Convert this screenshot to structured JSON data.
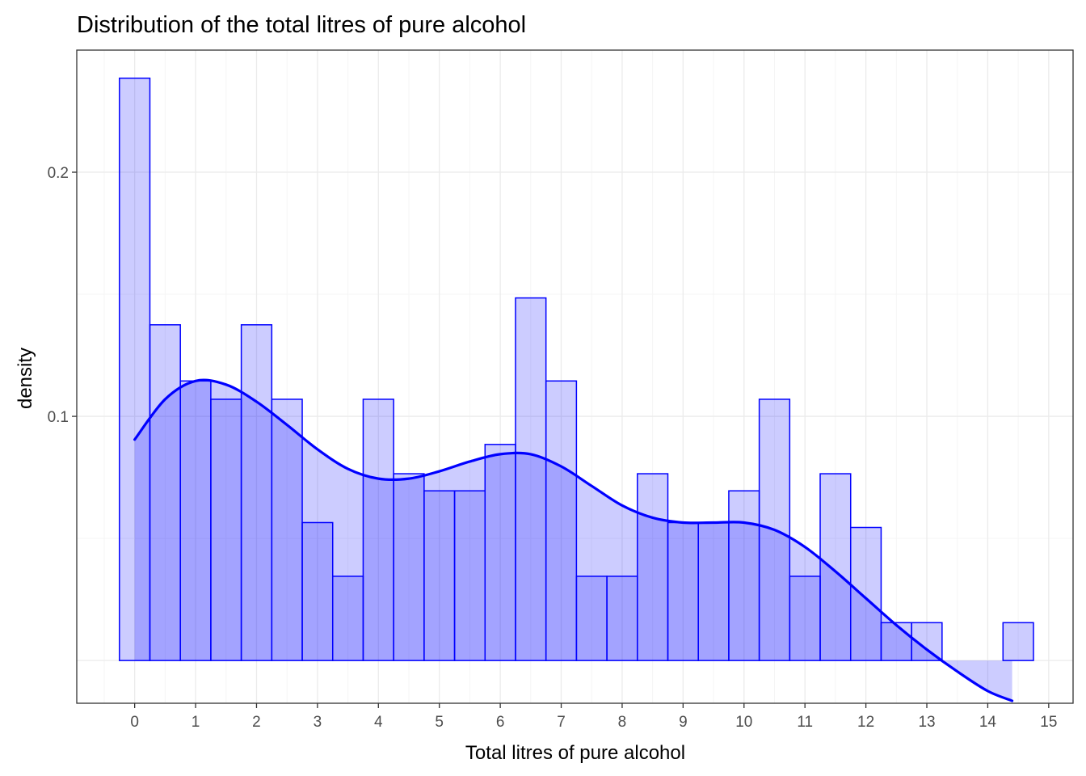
{
  "chart_data": {
    "type": "histogram",
    "title": "Distribution of the total litres of pure alcohol",
    "xlabel": "Total litres of pure alcohol",
    "ylabel": "density",
    "xlim": [
      -0.95,
      15.4
    ],
    "ylim": [
      -0.0175,
      0.25
    ],
    "x_ticks": [
      0,
      1,
      2,
      3,
      4,
      5,
      6,
      7,
      8,
      9,
      10,
      11,
      12,
      13,
      14,
      15
    ],
    "y_ticks": [
      {
        "value": 0.1,
        "label": "0.1"
      },
      {
        "value": 0.2,
        "label": "0.2"
      }
    ],
    "grid": true,
    "bins": {
      "start": -0.25,
      "width": 0.5,
      "values": [
        0.2385,
        0.1375,
        0.1145,
        0.107,
        0.1375,
        0.107,
        0.0565,
        0.0345,
        0.107,
        0.0765,
        0.0695,
        0.0695,
        0.0885,
        0.1485,
        0.1145,
        0.0345,
        0.0345,
        0.0765,
        0.0565,
        0.0565,
        0.0695,
        0.107,
        0.0345,
        0.0765,
        0.0545,
        0.0155,
        0.0155,
        0,
        0,
        0.0155
      ]
    },
    "density_curve": {
      "x": [
        0,
        0.5,
        1,
        1.5,
        2,
        2.5,
        3,
        3.5,
        4,
        4.5,
        5,
        5.5,
        6,
        6.5,
        7,
        7.5,
        8,
        8.5,
        9,
        9.5,
        10,
        10.5,
        11,
        11.5,
        12,
        12.5,
        13,
        13.5,
        14,
        14.4
      ],
      "y": [
        0.0905,
        0.107,
        0.1145,
        0.113,
        0.106,
        0.0965,
        0.0865,
        0.0785,
        0.0745,
        0.0745,
        0.0775,
        0.0815,
        0.0845,
        0.0845,
        0.0795,
        0.0715,
        0.0635,
        0.0585,
        0.0565,
        0.0565,
        0.0565,
        0.0535,
        0.0465,
        0.0365,
        0.0255,
        0.0145,
        0.0045,
        -0.0045,
        -0.0125,
        -0.0165
      ]
    },
    "colors": {
      "bar_fill": "#0000ff",
      "bar_fill_opacity": 0.2,
      "bar_stroke": "#0000ff",
      "curve": "#0000ff",
      "curve_area_opacity": 0.2,
      "grid_major": "#ebebeb",
      "grid_minor": "#f5f5f5",
      "panel_border": "#333333"
    }
  }
}
